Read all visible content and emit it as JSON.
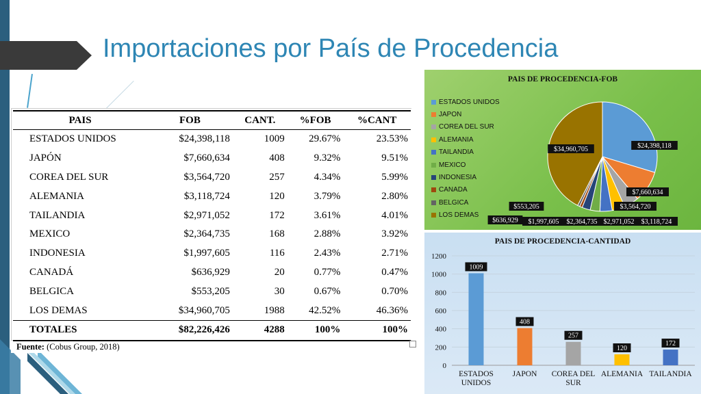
{
  "slide": {
    "title": "Importaciones por País de Procedencia",
    "colors": {
      "title": "#2e86b4",
      "band": "#2b5f7e"
    }
  },
  "table": {
    "headers": [
      "PAIS",
      "FOB",
      "CANT.",
      "%FOB",
      "%CANT"
    ],
    "rows": [
      {
        "pais": "ESTADOS UNIDOS",
        "fob": "$24,398,118",
        "cant": "1009",
        "pfob": "29.67%",
        "pcant": "23.53%"
      },
      {
        "pais": "JAPÓN",
        "fob": "$7,660,634",
        "cant": "408",
        "pfob": "9.32%",
        "pcant": "9.51%"
      },
      {
        "pais": "COREA DEL SUR",
        "fob": "$3,564,720",
        "cant": "257",
        "pfob": "4.34%",
        "pcant": "5.99%"
      },
      {
        "pais": "ALEMANIA",
        "fob": "$3,118,724",
        "cant": "120",
        "pfob": "3.79%",
        "pcant": "2.80%"
      },
      {
        "pais": "TAILANDIA",
        "fob": "$2,971,052",
        "cant": "172",
        "pfob": "3.61%",
        "pcant": "4.01%"
      },
      {
        "pais": "MEXICO",
        "fob": "$2,364,735",
        "cant": "168",
        "pfob": "2.88%",
        "pcant": "3.92%"
      },
      {
        "pais": "INDONESIA",
        "fob": "$1,997,605",
        "cant": "116",
        "pfob": "2.43%",
        "pcant": "2.71%"
      },
      {
        "pais": "CANADÁ",
        "fob": "$636,929",
        "cant": "20",
        "pfob": "0.77%",
        "pcant": "0.47%"
      },
      {
        "pais": "BELGICA",
        "fob": "$553,205",
        "cant": "30",
        "pfob": "0.67%",
        "pcant": "0.70%"
      },
      {
        "pais": "LOS DEMAS",
        "fob": "$34,960,705",
        "cant": "1988",
        "pfob": "42.52%",
        "pcant": "46.36%"
      }
    ],
    "total": {
      "pais": "TOTALES",
      "fob": "$82,226,426",
      "cant": "4288",
      "pfob": "100%",
      "pcant": "100%"
    },
    "source_label": "Fuente:",
    "source_text": " (Cobus Group, 2018)"
  },
  "chart_data": [
    {
      "type": "pie",
      "title": "PAIS DE PROCEDENCIA-FOB",
      "legend": "left",
      "categories": [
        "ESTADOS UNIDOS",
        "JAPON",
        "COREA DEL SUR",
        "ALEMANIA",
        "TAILANDIA",
        "MEXICO",
        "INDONESIA",
        "CANADA",
        "BELGICA",
        "LOS DEMAS"
      ],
      "values": [
        24398118,
        7660634,
        3564720,
        3118724,
        2971052,
        2364735,
        1997605,
        636929,
        553205,
        34960705
      ],
      "data_labels": [
        "$24,398,118",
        "$7,660,634",
        "$3,564,720",
        "$3,118,724",
        "$2,971,052",
        "$2,364,735",
        "$1,997,605",
        "$636,929",
        "$553,205",
        "$34,960,705"
      ],
      "colors": [
        "#5b9bd5",
        "#ed7d31",
        "#a5a5a5",
        "#ffc000",
        "#4472c4",
        "#70ad47",
        "#264478",
        "#9e480e",
        "#636363",
        "#997300"
      ]
    },
    {
      "type": "bar",
      "title": "PAIS DE PROCEDENCIA-CANTIDAD",
      "categories": [
        "ESTADOS UNIDOS",
        "JAPON",
        "COREA DEL SUR",
        "ALEMANIA",
        "TAILANDIA"
      ],
      "values": [
        1009,
        408,
        257,
        120,
        172
      ],
      "ylim": [
        0,
        1200
      ],
      "yticks": [
        0,
        200,
        400,
        600,
        800,
        1000,
        1200
      ],
      "grid": true,
      "colors": [
        "#5b9bd5",
        "#ed7d31",
        "#a5a5a5",
        "#ffc000",
        "#4472c4"
      ]
    }
  ]
}
